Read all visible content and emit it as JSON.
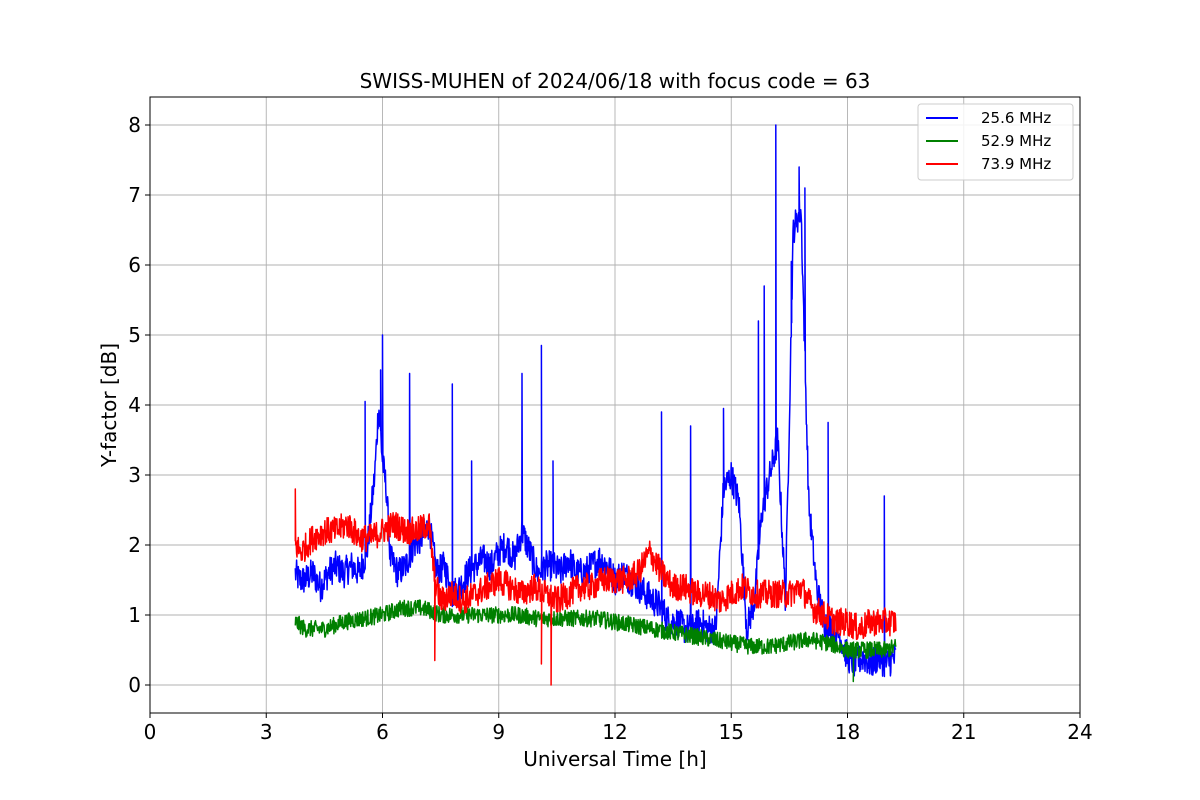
{
  "chart_data": {
    "type": "line",
    "title": "SWISS-MUHEN of 2024/06/18 with focus code = 63",
    "xlabel": "Universal Time [h]",
    "ylabel": "Y-factor [dB]",
    "xlim": [
      0,
      24
    ],
    "ylim": [
      -0.4,
      8.4
    ],
    "xticks": [
      0,
      3,
      6,
      9,
      12,
      15,
      18,
      21,
      24
    ],
    "yticks": [
      0,
      1,
      2,
      3,
      4,
      5,
      6,
      7,
      8
    ],
    "grid": true,
    "legend_position": "top-right",
    "series": [
      {
        "name": "25.6 MHz",
        "color": "#0000ff",
        "x": [
          3.75,
          3.85,
          4.0,
          4.2,
          4.4,
          4.6,
          4.8,
          5.0,
          5.2,
          5.4,
          5.6,
          5.8,
          5.9,
          6.0,
          6.1,
          6.2,
          6.4,
          6.6,
          6.8,
          7.0,
          7.2,
          7.4,
          7.6,
          7.8,
          8.0,
          8.2,
          8.4,
          8.6,
          8.8,
          9.0,
          9.2,
          9.4,
          9.6,
          9.8,
          10.0,
          10.2,
          10.4,
          10.6,
          10.8,
          11.0,
          11.2,
          11.4,
          11.6,
          11.8,
          12.0,
          12.2,
          12.4,
          12.6,
          12.8,
          13.0,
          13.2,
          13.4,
          13.6,
          13.8,
          14.0,
          14.2,
          14.4,
          14.6,
          14.8,
          15.0,
          15.2,
          15.4,
          15.6,
          15.8,
          16.0,
          16.2,
          16.4,
          16.6,
          16.8,
          17.0,
          17.2,
          17.4,
          17.6,
          17.8,
          18.0,
          18.2,
          18.4,
          18.6,
          18.8,
          19.0,
          19.25
        ],
        "values": [
          1.6,
          1.5,
          1.5,
          1.6,
          1.4,
          1.6,
          1.7,
          1.6,
          1.7,
          1.6,
          1.9,
          3.0,
          4.0,
          3.2,
          2.8,
          1.8,
          1.6,
          1.7,
          2.0,
          2.1,
          2.3,
          1.6,
          1.7,
          1.3,
          1.4,
          1.6,
          1.7,
          1.8,
          1.7,
          1.9,
          2.0,
          1.8,
          2.2,
          1.9,
          1.6,
          1.7,
          1.7,
          1.6,
          1.8,
          1.6,
          1.6,
          1.7,
          1.8,
          1.7,
          1.5,
          1.6,
          1.5,
          1.4,
          1.3,
          1.2,
          1.1,
          0.9,
          0.9,
          0.8,
          0.8,
          0.9,
          0.8,
          0.8,
          2.8,
          3.0,
          2.6,
          0.8,
          1.2,
          2.5,
          3.0,
          3.5,
          1.2,
          6.5,
          6.8,
          2.6,
          1.4,
          0.9,
          0.8,
          0.7,
          0.4,
          0.3,
          0.4,
          0.3,
          0.4,
          0.3,
          0.4
        ]
      },
      {
        "name": "52.9 MHz",
        "color": "#008000",
        "x": [
          3.75,
          4.0,
          4.5,
          5.0,
          5.5,
          6.0,
          6.5,
          7.0,
          7.3,
          7.5,
          8.0,
          8.5,
          9.0,
          9.5,
          10.0,
          10.5,
          11.0,
          11.5,
          12.0,
          12.5,
          13.0,
          13.5,
          14.0,
          14.5,
          15.0,
          15.5,
          16.0,
          16.5,
          17.0,
          17.5,
          18.0,
          18.5,
          19.0,
          19.25
        ],
        "values": [
          0.9,
          0.8,
          0.8,
          0.9,
          0.95,
          1.0,
          1.1,
          1.1,
          1.05,
          1.0,
          1.0,
          1.0,
          1.0,
          1.0,
          0.95,
          0.95,
          0.95,
          0.95,
          0.9,
          0.85,
          0.8,
          0.75,
          0.7,
          0.65,
          0.6,
          0.55,
          0.55,
          0.6,
          0.65,
          0.6,
          0.5,
          0.5,
          0.5,
          0.55
        ]
      },
      {
        "name": "73.9 MHz",
        "color": "#ff0000",
        "x": [
          3.75,
          3.9,
          4.2,
          4.5,
          4.8,
          5.1,
          5.4,
          5.7,
          6.0,
          6.3,
          6.6,
          6.9,
          7.2,
          7.35,
          7.5,
          7.8,
          8.1,
          8.4,
          8.7,
          9.0,
          9.3,
          9.6,
          9.9,
          10.2,
          10.5,
          10.8,
          11.1,
          11.4,
          11.7,
          12.0,
          12.3,
          12.6,
          12.9,
          13.2,
          13.5,
          13.8,
          14.1,
          14.4,
          14.7,
          15.0,
          15.3,
          15.6,
          15.9,
          16.2,
          16.5,
          16.8,
          17.1,
          17.4,
          17.7,
          18.0,
          18.3,
          18.6,
          18.9,
          19.25
        ],
        "values": [
          2.0,
          1.9,
          2.1,
          2.2,
          2.2,
          2.3,
          2.1,
          2.1,
          2.2,
          2.3,
          2.2,
          2.2,
          2.3,
          1.5,
          1.2,
          1.3,
          1.2,
          1.3,
          1.4,
          1.5,
          1.4,
          1.3,
          1.4,
          1.3,
          1.2,
          1.3,
          1.4,
          1.4,
          1.5,
          1.5,
          1.5,
          1.6,
          1.9,
          1.6,
          1.4,
          1.4,
          1.3,
          1.3,
          1.2,
          1.3,
          1.4,
          1.3,
          1.3,
          1.3,
          1.3,
          1.4,
          1.1,
          1.0,
          0.9,
          0.9,
          0.8,
          0.9,
          0.9,
          0.9
        ]
      }
    ],
    "spikes": [
      {
        "series": 0,
        "x": 5.55,
        "y": 4.05
      },
      {
        "series": 0,
        "x": 5.95,
        "y": 4.5
      },
      {
        "series": 0,
        "x": 6.0,
        "y": 5.0
      },
      {
        "series": 0,
        "x": 6.7,
        "y": 4.45
      },
      {
        "series": 0,
        "x": 7.8,
        "y": 4.3
      },
      {
        "series": 0,
        "x": 8.3,
        "y": 3.2
      },
      {
        "series": 0,
        "x": 9.6,
        "y": 4.45
      },
      {
        "series": 0,
        "x": 10.1,
        "y": 4.85
      },
      {
        "series": 0,
        "x": 10.4,
        "y": 3.2
      },
      {
        "series": 0,
        "x": 13.2,
        "y": 3.9
      },
      {
        "series": 0,
        "x": 13.95,
        "y": 3.7
      },
      {
        "series": 0,
        "x": 14.8,
        "y": 3.95
      },
      {
        "series": 0,
        "x": 15.7,
        "y": 5.2
      },
      {
        "series": 0,
        "x": 15.85,
        "y": 5.7
      },
      {
        "series": 0,
        "x": 16.15,
        "y": 8.0
      },
      {
        "series": 0,
        "x": 16.55,
        "y": 6.05
      },
      {
        "series": 0,
        "x": 16.75,
        "y": 7.4
      },
      {
        "series": 0,
        "x": 16.9,
        "y": 7.1
      },
      {
        "series": 0,
        "x": 17.5,
        "y": 3.75
      },
      {
        "series": 0,
        "x": 18.95,
        "y": 2.7
      },
      {
        "series": 2,
        "x": 3.75,
        "y": 2.8
      },
      {
        "series": 2,
        "x": 10.1,
        "y": 0.3
      },
      {
        "series": 2,
        "x": 10.35,
        "y": 0.0
      },
      {
        "series": 2,
        "x": 7.35,
        "y": 0.35
      },
      {
        "series": 1,
        "x": 18.15,
        "y": 0.05
      }
    ]
  }
}
